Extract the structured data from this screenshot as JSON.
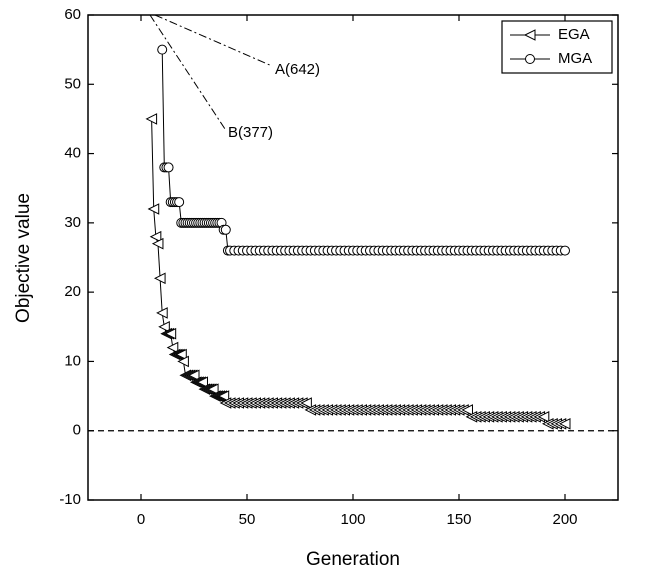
{
  "chart_data": {
    "type": "line",
    "x_label": "Generation",
    "y_label": "Objective value",
    "xlim": [
      -25,
      225
    ],
    "xticks": [
      0,
      50,
      100,
      150,
      200
    ],
    "ylim": [
      -10,
      60
    ],
    "yticks": [
      -10,
      0,
      10,
      20,
      30,
      40,
      50,
      60
    ],
    "hline": 0,
    "legend": "upper right",
    "annotations": [
      "A(642)",
      "B(377)"
    ],
    "series": [
      {
        "name": "EGA",
        "color": "#000000",
        "marker": "triangle-left",
        "x": [
          5,
          6,
          7,
          8,
          9,
          10,
          11,
          12,
          13,
          14,
          15,
          16,
          17,
          18,
          19,
          20,
          21,
          22,
          23,
          24,
          25,
          26,
          27,
          28,
          29,
          30,
          31,
          32,
          33,
          34,
          35,
          36,
          37,
          38,
          39,
          40,
          42,
          44,
          46,
          48,
          50,
          52,
          54,
          56,
          58,
          60,
          62,
          64,
          66,
          68,
          70,
          72,
          74,
          76,
          78,
          80,
          82,
          84,
          86,
          88,
          90,
          92,
          94,
          96,
          98,
          100,
          102,
          104,
          106,
          108,
          110,
          112,
          114,
          116,
          118,
          120,
          122,
          124,
          126,
          128,
          130,
          132,
          134,
          136,
          138,
          140,
          142,
          144,
          146,
          148,
          150,
          152,
          154,
          156,
          158,
          160,
          162,
          164,
          166,
          168,
          170,
          172,
          174,
          176,
          178,
          180,
          182,
          184,
          186,
          188,
          190,
          192,
          194,
          196,
          198,
          200
        ],
        "values": [
          45,
          32,
          28,
          27,
          22,
          17,
          15,
          14,
          14,
          14,
          12,
          11,
          11,
          11,
          11,
          10,
          8,
          8,
          8,
          8,
          8,
          7,
          7,
          7,
          7,
          6,
          6,
          6,
          6,
          6,
          5,
          5,
          5,
          5,
          5,
          4,
          4,
          4,
          4,
          4,
          4,
          4,
          4,
          4,
          4,
          4,
          4,
          4,
          4,
          4,
          4,
          4,
          4,
          4,
          4,
          3,
          3,
          3,
          3,
          3,
          3,
          3,
          3,
          3,
          3,
          3,
          3,
          3,
          3,
          3,
          3,
          3,
          3,
          3,
          3,
          3,
          3,
          3,
          3,
          3,
          3,
          3,
          3,
          3,
          3,
          3,
          3,
          3,
          3,
          3,
          3,
          3,
          3,
          2,
          2,
          2,
          2,
          2,
          2,
          2,
          2,
          2,
          2,
          2,
          2,
          2,
          2,
          2,
          2,
          2,
          2,
          1,
          1,
          1,
          1,
          1
        ]
      },
      {
        "name": "MGA",
        "color": "#000000",
        "marker": "circle",
        "x": [
          10,
          11,
          12,
          13,
          14,
          15,
          16,
          17,
          18,
          19,
          20,
          21,
          22,
          23,
          24,
          25,
          26,
          27,
          28,
          29,
          30,
          31,
          32,
          33,
          34,
          35,
          36,
          37,
          38,
          39,
          40,
          41,
          42,
          44,
          46,
          48,
          50,
          52,
          54,
          56,
          58,
          60,
          62,
          64,
          66,
          68,
          70,
          72,
          74,
          76,
          78,
          80,
          82,
          84,
          86,
          88,
          90,
          92,
          94,
          96,
          98,
          100,
          102,
          104,
          106,
          108,
          110,
          112,
          114,
          116,
          118,
          120,
          122,
          124,
          126,
          128,
          130,
          132,
          134,
          136,
          138,
          140,
          142,
          144,
          146,
          148,
          150,
          152,
          154,
          156,
          158,
          160,
          162,
          164,
          166,
          168,
          170,
          172,
          174,
          176,
          178,
          180,
          182,
          184,
          186,
          188,
          190,
          192,
          194,
          196,
          198,
          200
        ],
        "values": [
          55,
          38,
          38,
          38,
          33,
          33,
          33,
          33,
          33,
          30,
          30,
          30,
          30,
          30,
          30,
          30,
          30,
          30,
          30,
          30,
          30,
          30,
          30,
          30,
          30,
          30,
          30,
          30,
          30,
          29,
          29,
          26,
          26,
          26,
          26,
          26,
          26,
          26,
          26,
          26,
          26,
          26,
          26,
          26,
          26,
          26,
          26,
          26,
          26,
          26,
          26,
          26,
          26,
          26,
          26,
          26,
          26,
          26,
          26,
          26,
          26,
          26,
          26,
          26,
          26,
          26,
          26,
          26,
          26,
          26,
          26,
          26,
          26,
          26,
          26,
          26,
          26,
          26,
          26,
          26,
          26,
          26,
          26,
          26,
          26,
          26,
          26,
          26,
          26,
          26,
          26,
          26,
          26,
          26,
          26,
          26,
          26,
          26,
          26,
          26,
          26,
          26,
          26,
          26,
          26,
          26,
          26,
          26,
          26,
          26,
          26,
          26
        ]
      }
    ]
  }
}
